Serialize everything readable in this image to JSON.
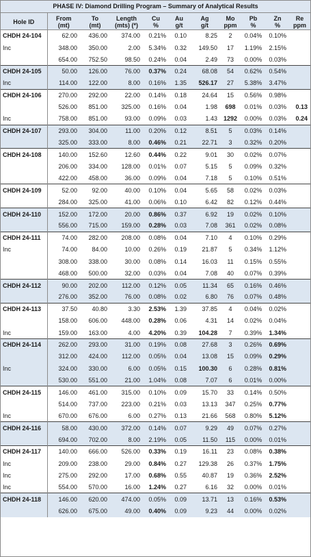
{
  "title": "PHASE IV: Diamond Drilling Program – Summary of Analytical Results",
  "headers": [
    [
      "Hole ID",
      ""
    ],
    [
      "From",
      "(mt)"
    ],
    [
      "To",
      "(mt)"
    ],
    [
      "Length",
      "(mts) (*)"
    ],
    [
      "Cu",
      "%"
    ],
    [
      "Au",
      "g/t"
    ],
    [
      "Ag",
      "g/t"
    ],
    [
      "Mo",
      "ppm"
    ],
    [
      "Pb",
      "%"
    ],
    [
      "Zn",
      "%"
    ],
    [
      "Re",
      "ppm"
    ]
  ],
  "groups": [
    {
      "shade": false,
      "rows": [
        {
          "hole": "CHDH 24-104",
          "from": "62.00",
          "to": "436.00",
          "len": "374.00",
          "cu": "0.21%",
          "au": "0.10",
          "ag": "8.25",
          "mo": "2",
          "pb": "0.04%",
          "zn": "0.10%",
          "re": "",
          "bold": []
        },
        {
          "hole": "Inc",
          "from": "348.00",
          "to": "350.00",
          "len": "2.00",
          "cu": "5.34%",
          "au": "0.32",
          "ag": "149.50",
          "mo": "17",
          "pb": "1.19%",
          "zn": "2.15%",
          "re": "",
          "bold": []
        },
        {
          "hole": "",
          "from": "654.00",
          "to": "752.50",
          "len": "98.50",
          "cu": "0.24%",
          "au": "0.04",
          "ag": "2.49",
          "mo": "73",
          "pb": "0.00%",
          "zn": "0.03%",
          "re": "",
          "bold": []
        }
      ]
    },
    {
      "shade": true,
      "rows": [
        {
          "hole": "CHDH 24-105",
          "from": "50.00",
          "to": "126.00",
          "len": "76.00",
          "cu": "0.37%",
          "au": "0.24",
          "ag": "68.08",
          "mo": "54",
          "pb": "0.62%",
          "zn": "0.54%",
          "re": "",
          "bold": [
            "cu"
          ]
        },
        {
          "hole": "Inc",
          "from": "114.00",
          "to": "122.00",
          "len": "8.00",
          "cu": "0.16%",
          "au": "1.35",
          "ag": "526.17",
          "mo": "27",
          "pb": "5.38%",
          "zn": "3.47%",
          "re": "",
          "bold": [
            "ag"
          ]
        }
      ]
    },
    {
      "shade": false,
      "rows": [
        {
          "hole": "CHDH 24-106",
          "from": "270.00",
          "to": "292.00",
          "len": "22.00",
          "cu": "0.14%",
          "au": "0.18",
          "ag": "24.64",
          "mo": "15",
          "pb": "0.56%",
          "zn": "0.98%",
          "re": "",
          "bold": []
        },
        {
          "hole": "",
          "from": "526.00",
          "to": "851.00",
          "len": "325.00",
          "cu": "0.16%",
          "au": "0.04",
          "ag": "1.98",
          "mo": "698",
          "pb": "0.01%",
          "zn": "0.03%",
          "re": "0.13",
          "bold": [
            "mo",
            "re"
          ]
        },
        {
          "hole": "Inc",
          "from": "758.00",
          "to": "851.00",
          "len": "93.00",
          "cu": "0.09%",
          "au": "0.03",
          "ag": "1.43",
          "mo": "1292",
          "pb": "0.00%",
          "zn": "0.03%",
          "re": "0.24",
          "bold": [
            "mo",
            "re"
          ]
        }
      ]
    },
    {
      "shade": true,
      "rows": [
        {
          "hole": "CHDH 24-107",
          "from": "293.00",
          "to": "304.00",
          "len": "11.00",
          "cu": "0.20%",
          "au": "0.12",
          "ag": "8.51",
          "mo": "5",
          "pb": "0.03%",
          "zn": "0.14%",
          "re": "",
          "bold": []
        },
        {
          "hole": "",
          "from": "325.00",
          "to": "333.00",
          "len": "8.00",
          "cu": "0.46%",
          "au": "0.21",
          "ag": "22.71",
          "mo": "3",
          "pb": "0.32%",
          "zn": "0.20%",
          "re": "",
          "bold": [
            "cu"
          ]
        }
      ]
    },
    {
      "shade": false,
      "rows": [
        {
          "hole": "CHDH 24-108",
          "from": "140.00",
          "to": "152.60",
          "len": "12.60",
          "cu": "0.44%",
          "au": "0.22",
          "ag": "9.01",
          "mo": "30",
          "pb": "0.02%",
          "zn": "0.07%",
          "re": "",
          "bold": [
            "cu"
          ]
        },
        {
          "hole": "",
          "from": "206.00",
          "to": "334.00",
          "len": "128.00",
          "cu": "0.01%",
          "au": "0.07",
          "ag": "5.15",
          "mo": "5",
          "pb": "0.09%",
          "zn": "0.32%",
          "re": "",
          "bold": []
        },
        {
          "hole": "",
          "from": "422.00",
          "to": "458.00",
          "len": "36.00",
          "cu": "0.09%",
          "au": "0.04",
          "ag": "7.18",
          "mo": "5",
          "pb": "0.10%",
          "zn": "0.51%",
          "re": "",
          "bold": []
        }
      ]
    },
    {
      "shade": false,
      "rows": [
        {
          "hole": "CHDH 24-109",
          "from": "52.00",
          "to": "92.00",
          "len": "40.00",
          "cu": "0.10%",
          "au": "0.04",
          "ag": "5.65",
          "mo": "58",
          "pb": "0.02%",
          "zn": "0.03%",
          "re": "",
          "bold": []
        },
        {
          "hole": "",
          "from": "284.00",
          "to": "325.00",
          "len": "41.00",
          "cu": "0.06%",
          "au": "0.10",
          "ag": "6.42",
          "mo": "82",
          "pb": "0.12%",
          "zn": "0.44%",
          "re": "",
          "bold": []
        }
      ]
    },
    {
      "shade": true,
      "rows": [
        {
          "hole": "CHDH 24-110",
          "from": "152.00",
          "to": "172.00",
          "len": "20.00",
          "cu": "0.86%",
          "au": "0.37",
          "ag": "6.92",
          "mo": "19",
          "pb": "0.02%",
          "zn": "0.10%",
          "re": "",
          "bold": [
            "cu"
          ]
        },
        {
          "hole": "",
          "from": "556.00",
          "to": "715.00",
          "len": "159.00",
          "cu": "0.28%",
          "au": "0.03",
          "ag": "7.08",
          "mo": "361",
          "pb": "0.02%",
          "zn": "0.08%",
          "re": "",
          "bold": [
            "cu"
          ]
        }
      ]
    },
    {
      "shade": false,
      "rows": [
        {
          "hole": "CHDH 24-111",
          "from": "74.00",
          "to": "282.00",
          "len": "208.00",
          "cu": "0.08%",
          "au": "0.04",
          "ag": "7.10",
          "mo": "4",
          "pb": "0.10%",
          "zn": "0.29%",
          "re": "",
          "bold": []
        },
        {
          "hole": "Inc",
          "from": "74.00",
          "to": "84.00",
          "len": "10.00",
          "cu": "0.26%",
          "au": "0.19",
          "ag": "21.87",
          "mo": "5",
          "pb": "0.34%",
          "zn": "1.12%",
          "re": "",
          "bold": []
        },
        {
          "hole": "",
          "from": "308.00",
          "to": "338.00",
          "len": "30.00",
          "cu": "0.08%",
          "au": "0.14",
          "ag": "16.03",
          "mo": "11",
          "pb": "0.15%",
          "zn": "0.55%",
          "re": "",
          "bold": []
        },
        {
          "hole": "",
          "from": "468.00",
          "to": "500.00",
          "len": "32.00",
          "cu": "0.03%",
          "au": "0.04",
          "ag": "7.08",
          "mo": "40",
          "pb": "0.07%",
          "zn": "0.39%",
          "re": "",
          "bold": []
        }
      ]
    },
    {
      "shade": true,
      "rows": [
        {
          "hole": "CHDH 24-112",
          "from": "90.00",
          "to": "202.00",
          "len": "112.00",
          "cu": "0.12%",
          "au": "0.05",
          "ag": "11.34",
          "mo": "65",
          "pb": "0.16%",
          "zn": "0.46%",
          "re": "",
          "bold": []
        },
        {
          "hole": "",
          "from": "276.00",
          "to": "352.00",
          "len": "76.00",
          "cu": "0.08%",
          "au": "0.02",
          "ag": "6.80",
          "mo": "76",
          "pb": "0.07%",
          "zn": "0.48%",
          "re": "",
          "bold": []
        }
      ]
    },
    {
      "shade": false,
      "rows": [
        {
          "hole": "CHDH 24-113",
          "from": "37.50",
          "to": "40.80",
          "len": "3.30",
          "cu": "2.53%",
          "au": "1.39",
          "ag": "37.85",
          "mo": "4",
          "pb": "0.04%",
          "zn": "0.02%",
          "re": "",
          "bold": [
            "cu"
          ]
        },
        {
          "hole": "",
          "from": "158.00",
          "to": "606.00",
          "len": "448.00",
          "cu": "0.28%",
          "au": "0.06",
          "ag": "4.31",
          "mo": "14",
          "pb": "0.02%",
          "zn": "0.04%",
          "re": "",
          "bold": [
            "cu"
          ]
        },
        {
          "hole": "Inc",
          "from": "159.00",
          "to": "163.00",
          "len": "4.00",
          "cu": "4.20%",
          "au": "0.39",
          "ag": "104.28",
          "mo": "7",
          "pb": "0.39%",
          "zn": "1.34%",
          "re": "",
          "bold": [
            "cu",
            "ag",
            "zn"
          ]
        }
      ]
    },
    {
      "shade": true,
      "rows": [
        {
          "hole": "CHDH 24-114",
          "from": "262.00",
          "to": "293.00",
          "len": "31.00",
          "cu": "0.19%",
          "au": "0.08",
          "ag": "27.68",
          "mo": "3",
          "pb": "0.26%",
          "zn": "0.69%",
          "re": "",
          "bold": [
            "zn"
          ]
        },
        {
          "hole": "",
          "from": "312.00",
          "to": "424.00",
          "len": "112.00",
          "cu": "0.05%",
          "au": "0.04",
          "ag": "13.08",
          "mo": "15",
          "pb": "0.09%",
          "zn": "0.29%",
          "re": "",
          "bold": [
            "zn"
          ]
        },
        {
          "hole": "Inc",
          "from": "324.00",
          "to": "330.00",
          "len": "6.00",
          "cu": "0.05%",
          "au": "0.15",
          "ag": "100.30",
          "mo": "6",
          "pb": "0.28%",
          "zn": "0.81%",
          "re": "",
          "bold": [
            "ag",
            "zn"
          ]
        },
        {
          "hole": "",
          "from": "530.00",
          "to": "551.00",
          "len": "21.00",
          "cu": "1.04%",
          "au": "0.08",
          "ag": "7.07",
          "mo": "6",
          "pb": "0.01%",
          "zn": "0.00%",
          "re": "",
          "bold": []
        }
      ]
    },
    {
      "shade": false,
      "rows": [
        {
          "hole": "CHDH 24-115",
          "from": "146.00",
          "to": "461.00",
          "len": "315.00",
          "cu": "0.10%",
          "au": "0.09",
          "ag": "15.70",
          "mo": "33",
          "pb": "0.14%",
          "zn": "0.50%",
          "re": "",
          "bold": []
        },
        {
          "hole": "",
          "from": "514.00",
          "to": "737.00",
          "len": "223.00",
          "cu": "0.21%",
          "au": "0.03",
          "ag": "13.13",
          "mo": "347",
          "pb": "0.25%",
          "zn": "0.77%",
          "re": "",
          "bold": [
            "zn"
          ]
        },
        {
          "hole": "Inc",
          "from": "670.00",
          "to": "676.00",
          "len": "6.00",
          "cu": "0.27%",
          "au": "0.13",
          "ag": "21.66",
          "mo": "568",
          "pb": "0.80%",
          "zn": "5.12%",
          "re": "",
          "bold": [
            "zn"
          ]
        }
      ]
    },
    {
      "shade": true,
      "rows": [
        {
          "hole": "CHDH 24-116",
          "from": "58.00",
          "to": "430.00",
          "len": "372.00",
          "cu": "0.14%",
          "au": "0.07",
          "ag": "9.29",
          "mo": "49",
          "pb": "0.07%",
          "zn": "0.27%",
          "re": "",
          "bold": []
        },
        {
          "hole": "",
          "from": "694.00",
          "to": "702.00",
          "len": "8.00",
          "cu": "2.19%",
          "au": "0.05",
          "ag": "11.50",
          "mo": "115",
          "pb": "0.00%",
          "zn": "0.01%",
          "re": "",
          "bold": []
        }
      ]
    },
    {
      "shade": false,
      "rows": [
        {
          "hole": "CHDH 24-117",
          "from": "140.00",
          "to": "666.00",
          "len": "526.00",
          "cu": "0.33%",
          "au": "0.19",
          "ag": "16.11",
          "mo": "23",
          "pb": "0.08%",
          "zn": "0.38%",
          "re": "",
          "bold": [
            "cu",
            "zn"
          ]
        },
        {
          "hole": "Inc",
          "from": "209.00",
          "to": "238.00",
          "len": "29.00",
          "cu": "0.84%",
          "au": "0.27",
          "ag": "129.38",
          "mo": "26",
          "pb": "0.37%",
          "zn": "1.75%",
          "re": "",
          "bold": [
            "cu",
            "zn"
          ]
        },
        {
          "hole": "Inc",
          "from": "275.00",
          "to": "292.00",
          "len": "17.00",
          "cu": "0.68%",
          "au": "0.55",
          "ag": "40.87",
          "mo": "19",
          "pb": "0.36%",
          "zn": "2.52%",
          "re": "",
          "bold": [
            "cu",
            "zn"
          ]
        },
        {
          "hole": "Inc",
          "from": "554.00",
          "to": "570.00",
          "len": "16.00",
          "cu": "1.24%",
          "au": "0.27",
          "ag": "6.16",
          "mo": "32",
          "pb": "0.00%",
          "zn": "0.01%",
          "re": "",
          "bold": [
            "cu"
          ]
        }
      ]
    },
    {
      "shade": true,
      "rows": [
        {
          "hole": "CHDH 24-118",
          "from": "146.00",
          "to": "620.00",
          "len": "474.00",
          "cu": "0.05%",
          "au": "0.09",
          "ag": "13.71",
          "mo": "13",
          "pb": "0.16%",
          "zn": "0.53%",
          "re": "",
          "bold": [
            "zn"
          ]
        },
        {
          "hole": "",
          "from": "626.00",
          "to": "675.00",
          "len": "49.00",
          "cu": "0.40%",
          "au": "0.09",
          "ag": "9.23",
          "mo": "44",
          "pb": "0.00%",
          "zn": "0.02%",
          "re": "",
          "bold": [
            "cu"
          ]
        }
      ]
    }
  ]
}
